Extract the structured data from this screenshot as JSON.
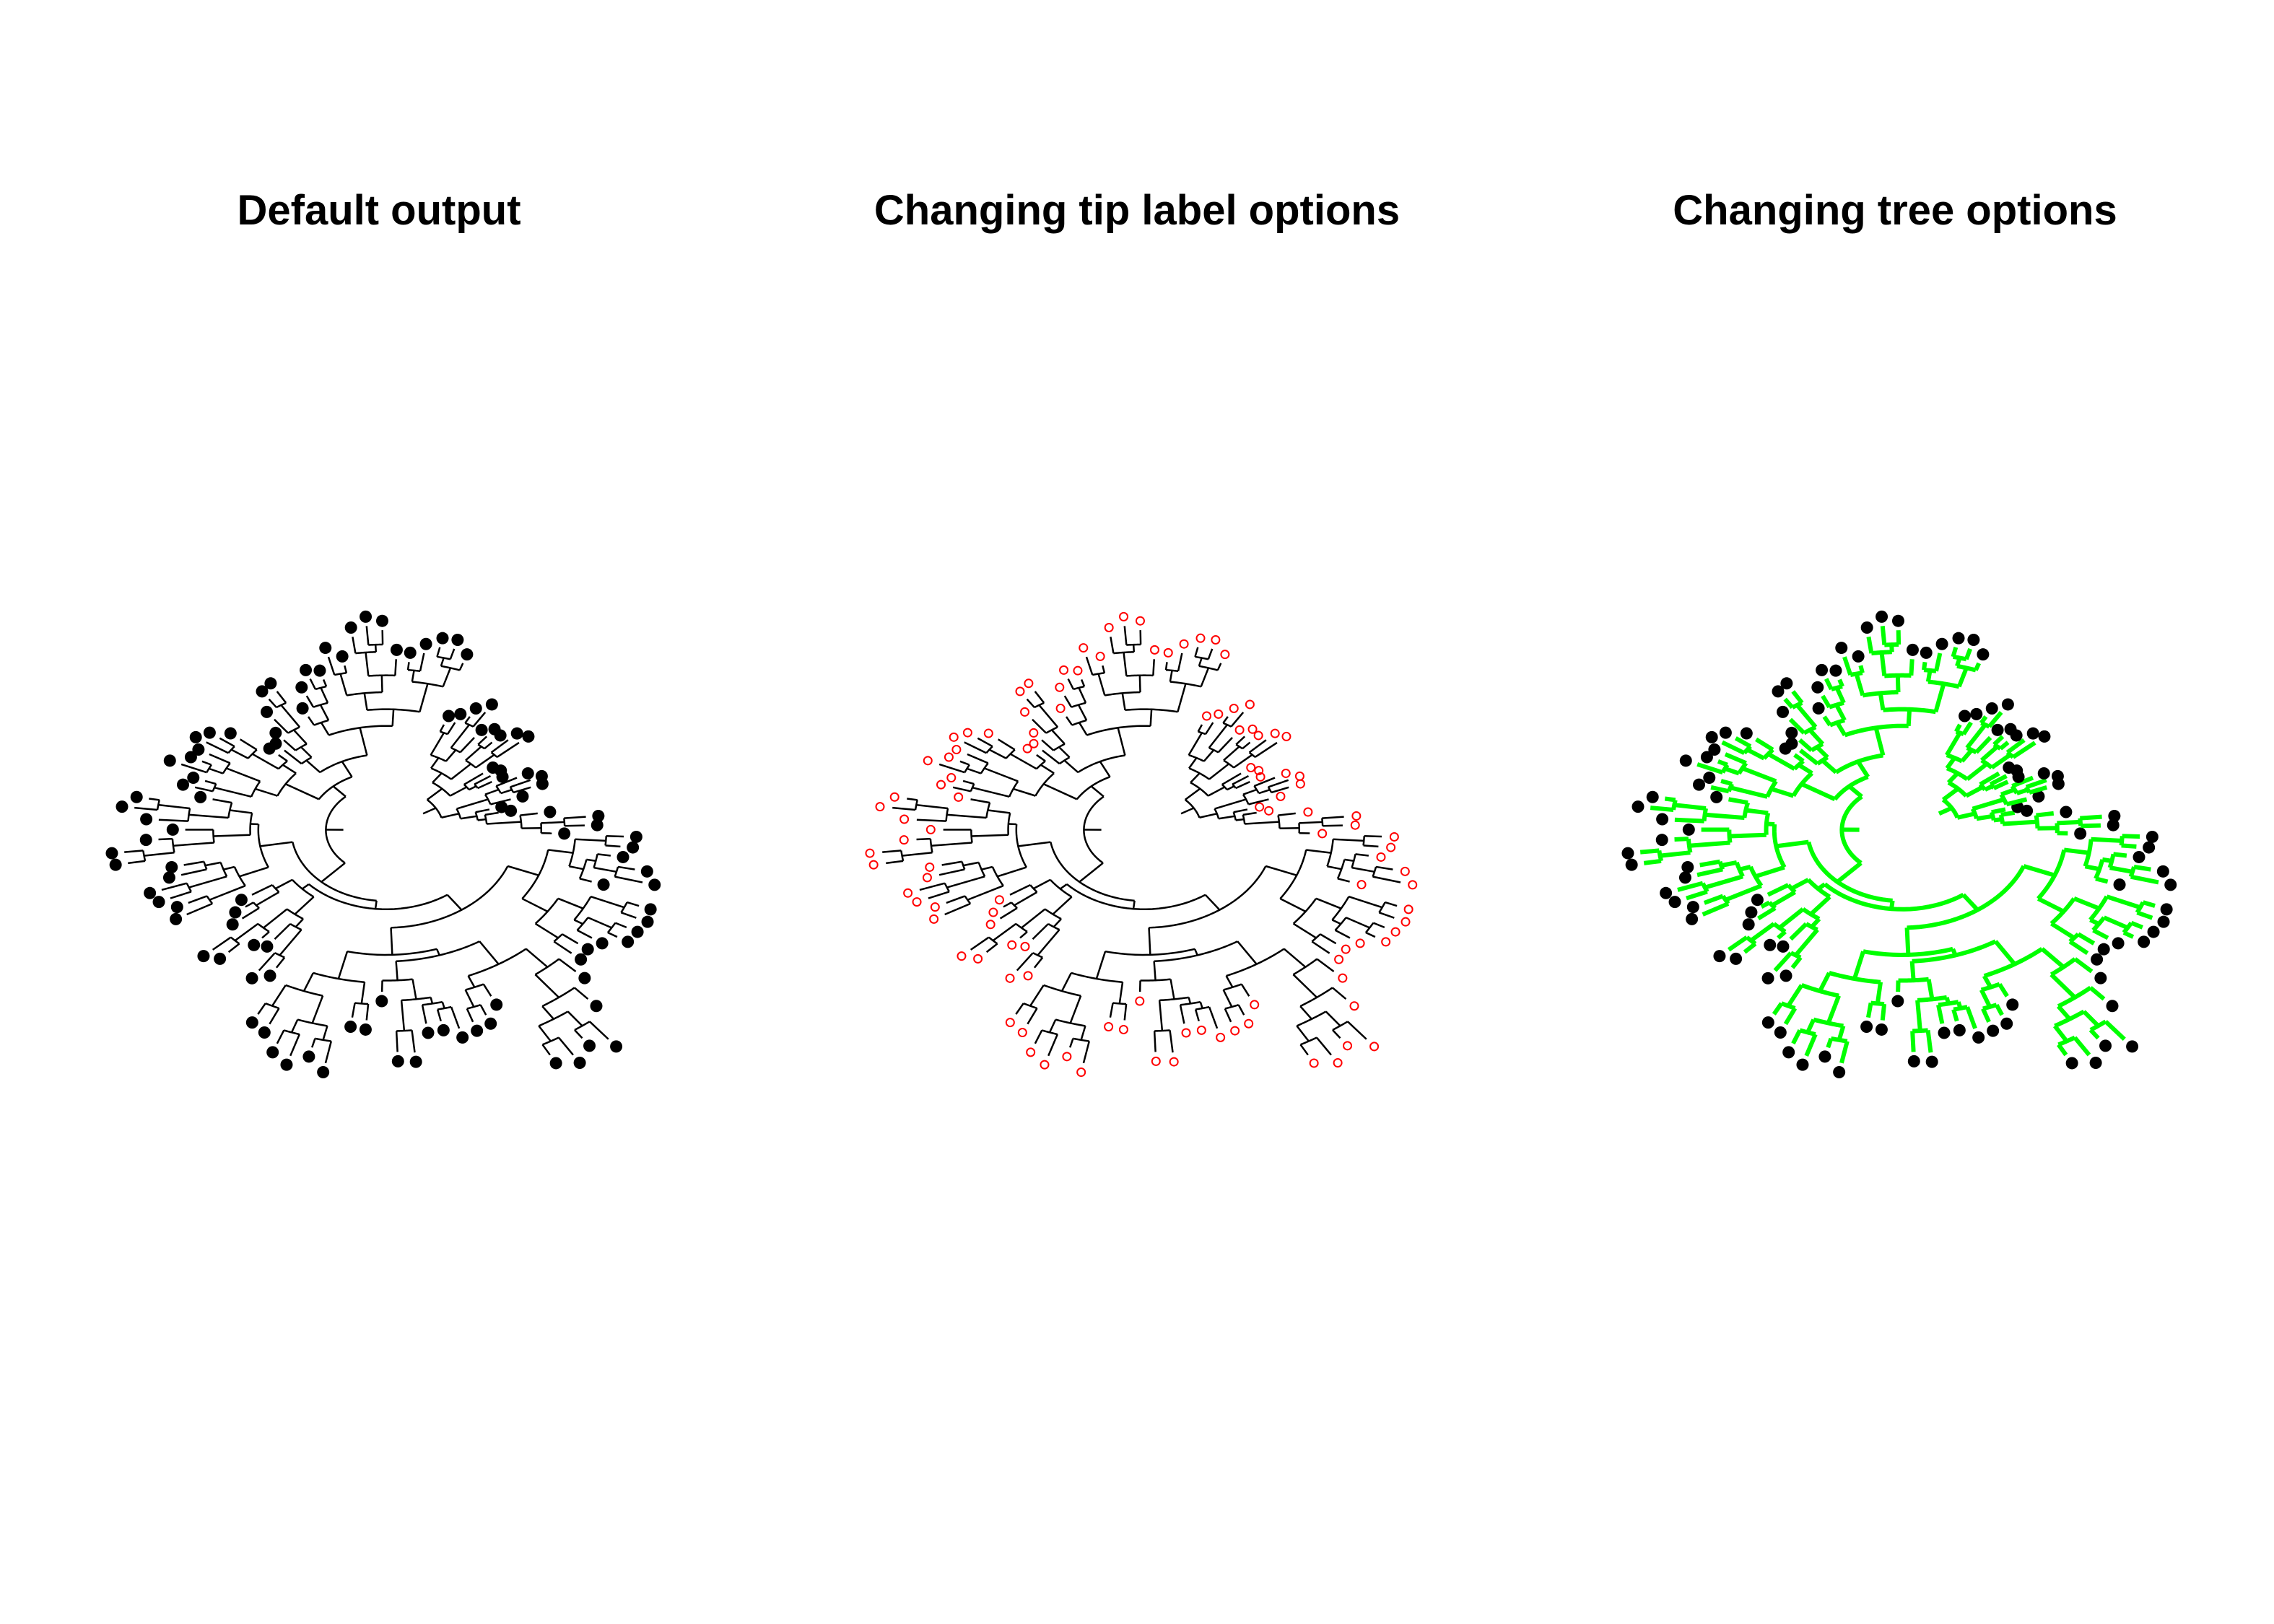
{
  "panels": [
    {
      "title": "Default output",
      "edge_color": "#000000",
      "tip_style": "filled-circle",
      "tip_color": "#000000"
    },
    {
      "title": "Changing tip label options",
      "edge_color": "#000000",
      "tip_style": "open-circle",
      "tip_color": "#ff0000"
    },
    {
      "title": "Changing tree options",
      "edge_color": "#00ff00",
      "tip_style": "filled-circle",
      "tip_color": "#000000"
    }
  ]
}
